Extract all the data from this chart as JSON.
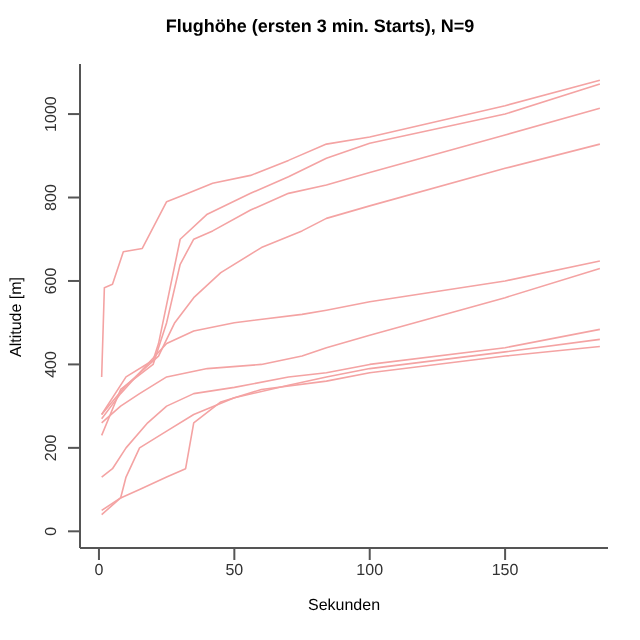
{
  "chart_data": {
    "type": "line",
    "title": "Flughöhe (ersten 3 min. Starts), N=9",
    "xlabel": "Sekunden",
    "ylabel": "Altitude [m]",
    "xlim": [
      -7,
      188
    ],
    "xticks": [
      0,
      50,
      100,
      150
    ],
    "ylim": [
      -40,
      1120
    ],
    "yticks": [
      0,
      200,
      400,
      600,
      800,
      1000
    ],
    "marker": "none",
    "line_style": "solid",
    "series": [
      {
        "color": "#f4a3a3",
        "x": [
          1,
          2,
          5,
          9,
          16,
          25,
          32,
          42,
          56,
          70,
          84,
          100,
          150,
          185
        ],
        "values": [
          370,
          584,
          592,
          670,
          678,
          790,
          808,
          834,
          853,
          889,
          928,
          945,
          1020,
          1081
        ]
      },
      {
        "color": "#f4a3a3",
        "x": [
          1,
          10,
          20,
          22,
          30,
          40,
          56,
          70,
          84,
          100,
          150,
          185
        ],
        "values": [
          280,
          370,
          410,
          450,
          700,
          760,
          810,
          850,
          894,
          930,
          1000,
          1072
        ]
      },
      {
        "color": "#f4a3a3",
        "x": [
          1,
          8,
          20,
          25,
          30,
          35,
          42,
          56,
          70,
          84,
          100,
          150,
          185
        ],
        "values": [
          230,
          340,
          400,
          500,
          640,
          700,
          720,
          770,
          810,
          830,
          860,
          950,
          1014
        ]
      },
      {
        "color": "#f4a3a3",
        "x": [
          1,
          10,
          22,
          28,
          35,
          45,
          60,
          75,
          84,
          100,
          150,
          185
        ],
        "values": [
          280,
          350,
          420,
          500,
          560,
          620,
          680,
          720,
          750,
          780,
          870,
          928
        ]
      },
      {
        "color": "#f4a3a3",
        "x": [
          1,
          8,
          15,
          25,
          35,
          50,
          75,
          84,
          100,
          150,
          185
        ],
        "values": [
          270,
          330,
          380,
          450,
          480,
          500,
          520,
          530,
          550,
          600,
          648
        ]
      },
      {
        "color": "#f4a3a3",
        "x": [
          1,
          8,
          15,
          25,
          40,
          60,
          75,
          84,
          100,
          150,
          185
        ],
        "values": [
          260,
          300,
          330,
          370,
          390,
          400,
          420,
          440,
          470,
          560,
          630
        ]
      },
      {
        "color": "#f4a3a3",
        "x": [
          1,
          5,
          10,
          18,
          25,
          35,
          50,
          70,
          84,
          100,
          150,
          185
        ],
        "values": [
          130,
          150,
          200,
          260,
          300,
          330,
          345,
          370,
          380,
          400,
          440,
          484
        ]
      },
      {
        "color": "#f4a3a3",
        "x": [
          1,
          8,
          10,
          15,
          25,
          35,
          50,
          70,
          84,
          100,
          150,
          185
        ],
        "values": [
          50,
          80,
          130,
          200,
          240,
          280,
          320,
          350,
          370,
          390,
          430,
          460
        ]
      },
      {
        "color": "#f4a3a3",
        "x": [
          1,
          8,
          15,
          25,
          32,
          35,
          45,
          60,
          84,
          100,
          150,
          185
        ],
        "values": [
          40,
          80,
          100,
          130,
          150,
          260,
          310,
          340,
          360,
          380,
          420,
          443
        ]
      }
    ]
  }
}
